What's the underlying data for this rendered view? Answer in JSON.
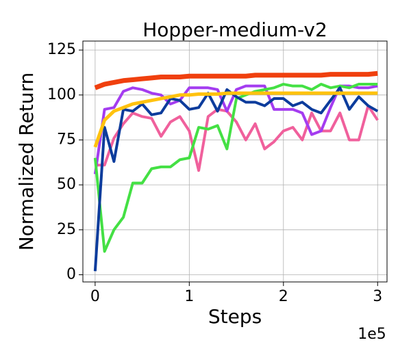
{
  "chart_data": {
    "type": "line",
    "title": "Hopper-medium-v2",
    "x_label": "Steps",
    "y_label": "Normalized Return",
    "x_offset_label": "1e5",
    "x": [
      0,
      0.1,
      0.2,
      0.3,
      0.4,
      0.5,
      0.6,
      0.7,
      0.8,
      0.9,
      1,
      1.1,
      1.2,
      1.3,
      1.4,
      1.5,
      1.6,
      1.7,
      1.8,
      1.9,
      2,
      2.1,
      2.2,
      2.3,
      2.4,
      2.5,
      2.6,
      2.7,
      2.8,
      2.9,
      3
    ],
    "xlim": [
      -0.13,
      3.1
    ],
    "xticks": [
      0,
      1,
      2,
      3
    ],
    "ylim": [
      -4,
      130
    ],
    "yticks": [
      0,
      25,
      50,
      75,
      100,
      125
    ],
    "grid": true,
    "series": [
      {
        "color": "#f0609c",
        "values": [
          61,
          61,
          76,
          84,
          90,
          88,
          87,
          77,
          85,
          88,
          80,
          58,
          88,
          92,
          91,
          85,
          75,
          84,
          70,
          74,
          80,
          82,
          75,
          90,
          80,
          80,
          90,
          75,
          75,
          94,
          86
        ]
      },
      {
        "color": "#a43cf0",
        "values": [
          56,
          92,
          93,
          102,
          104,
          103,
          101,
          100,
          95,
          97,
          104,
          104,
          104,
          103,
          91,
          103,
          105,
          105,
          105,
          92,
          92,
          92,
          90,
          78,
          80,
          93,
          105,
          105,
          104,
          104,
          105
        ]
      },
      {
        "color": "#44e044",
        "values": [
          65,
          13,
          25,
          32,
          51,
          51,
          59,
          60,
          60,
          64,
          65,
          82,
          81,
          83,
          70,
          98,
          100,
          102,
          103,
          104,
          106,
          105,
          105,
          103,
          106,
          104,
          105,
          104,
          106,
          106,
          106
        ]
      },
      {
        "color": "#0c3c9c",
        "values": [
          2,
          82,
          63,
          92,
          91,
          95,
          89,
          90,
          98,
          97,
          92,
          93,
          101,
          91,
          103,
          99,
          96,
          96,
          94,
          98,
          98,
          94,
          96,
          92,
          90,
          97,
          104,
          92,
          99,
          94,
          91
        ]
      },
      {
        "color": "#ffc20e",
        "values": [
          71,
          86,
          91,
          93,
          95,
          96,
          97,
          98,
          99,
          100,
          100,
          100.5,
          100.5,
          100.5,
          101,
          101,
          101,
          101,
          101,
          101,
          101,
          101,
          101,
          101,
          101,
          101,
          101,
          101,
          101,
          101,
          101
        ]
      },
      {
        "color": "#f0400e",
        "values": [
          104,
          106,
          107,
          108,
          108.5,
          109,
          109.5,
          110,
          110,
          110,
          110.5,
          110.5,
          110.5,
          110.5,
          110.5,
          110.5,
          110.5,
          111,
          111,
          111,
          111,
          111,
          111,
          111,
          111,
          111.5,
          111.5,
          111.5,
          111.5,
          111.5,
          112
        ]
      }
    ]
  }
}
